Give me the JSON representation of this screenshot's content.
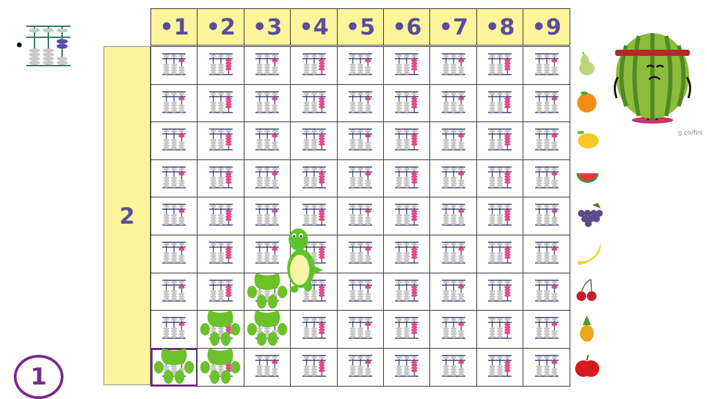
{
  "header": {
    "columns": [
      "•1",
      "•2",
      "•3",
      "•4",
      "•5",
      "•6",
      "•7",
      "•8",
      "•9"
    ]
  },
  "side_label": "2",
  "row_count": 9,
  "selected_cell": {
    "row": 9,
    "column": 1
  },
  "page_badge": "1",
  "credit": "g.co/fini",
  "fruits": [
    "pear",
    "orange",
    "lemon",
    "watermelon",
    "grapes",
    "banana",
    "cherries",
    "pineapple",
    "apple"
  ],
  "paw_prints": [
    {
      "row": 9,
      "column": 1
    },
    {
      "row": 9,
      "column": 2
    },
    {
      "row": 8,
      "column": 2
    },
    {
      "row": 8,
      "column": 3
    },
    {
      "row": 7,
      "column": 3
    }
  ],
  "character": {
    "name": "turtle",
    "row": 6.5,
    "column": 4
  },
  "colors": {
    "header_bg": "#fdf49c",
    "label_text": "#5b4c9c",
    "bead_pink": "#e9488a",
    "bead_grey": "#c8c8c8",
    "rod": "#3b3f6e",
    "paw": "#6cc22a",
    "selected_border": "#6a2a78"
  }
}
